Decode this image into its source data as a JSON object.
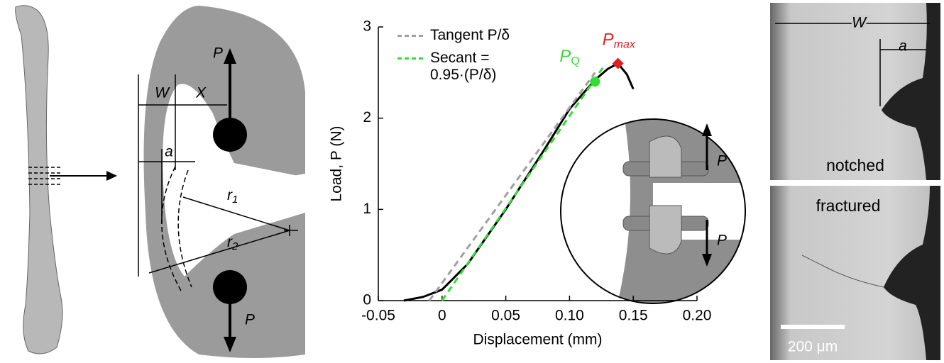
{
  "left_diagram": {
    "W": "W",
    "X": "X",
    "a": "a",
    "r1": "r",
    "r1_sub": "1",
    "r2": "r",
    "r2_sub": "2",
    "P_top": "P",
    "P_bottom": "P"
  },
  "chart_data": {
    "type": "line",
    "xlabel": "Displacement (mm)",
    "ylabel": "Load, P (N)",
    "xlim": [
      -0.05,
      0.2
    ],
    "ylim": [
      0,
      3
    ],
    "xticks": [
      -0.05,
      0,
      0.05,
      {
        "value": 0.1,
        "label": "0.10"
      },
      0.15,
      {
        "value": 0.2,
        "label": "0.20"
      }
    ],
    "yticks": [
      0,
      1,
      2,
      3
    ],
    "curve": {
      "color": "#000000",
      "x": [
        -0.03,
        -0.015,
        0,
        0.02,
        0.05,
        0.08,
        0.1,
        0.12,
        0.13,
        0.138,
        0.145,
        0.15
      ],
      "values": [
        0,
        0.04,
        0.12,
        0.4,
        1.0,
        1.65,
        2.1,
        2.42,
        2.54,
        2.6,
        2.48,
        2.32
      ]
    },
    "series": [
      {
        "name": "Tangent P/δ",
        "color": "#a0a0a0",
        "x": [
          -0.01,
          0.12
        ],
        "values": [
          0,
          2.5
        ]
      },
      {
        "name": "Secant = 0.95·(P/δ)",
        "color": "#33dd33",
        "x": [
          0,
          0.126
        ],
        "values": [
          0,
          2.55
        ]
      }
    ],
    "points": [
      {
        "label": "P",
        "sub": "Q",
        "x": 0.12,
        "y": 2.4,
        "color": "#33dd33"
      },
      {
        "label": "P",
        "sub": "max",
        "x": 0.138,
        "y": 2.6,
        "color": "#e02020"
      }
    ],
    "inset": {
      "P_top": "P",
      "P_bottom": "P"
    }
  },
  "right_images": {
    "W": "W",
    "a": "a",
    "top_label": "notched",
    "bottom_label": "fractured",
    "scale_bar": "200 μm"
  }
}
